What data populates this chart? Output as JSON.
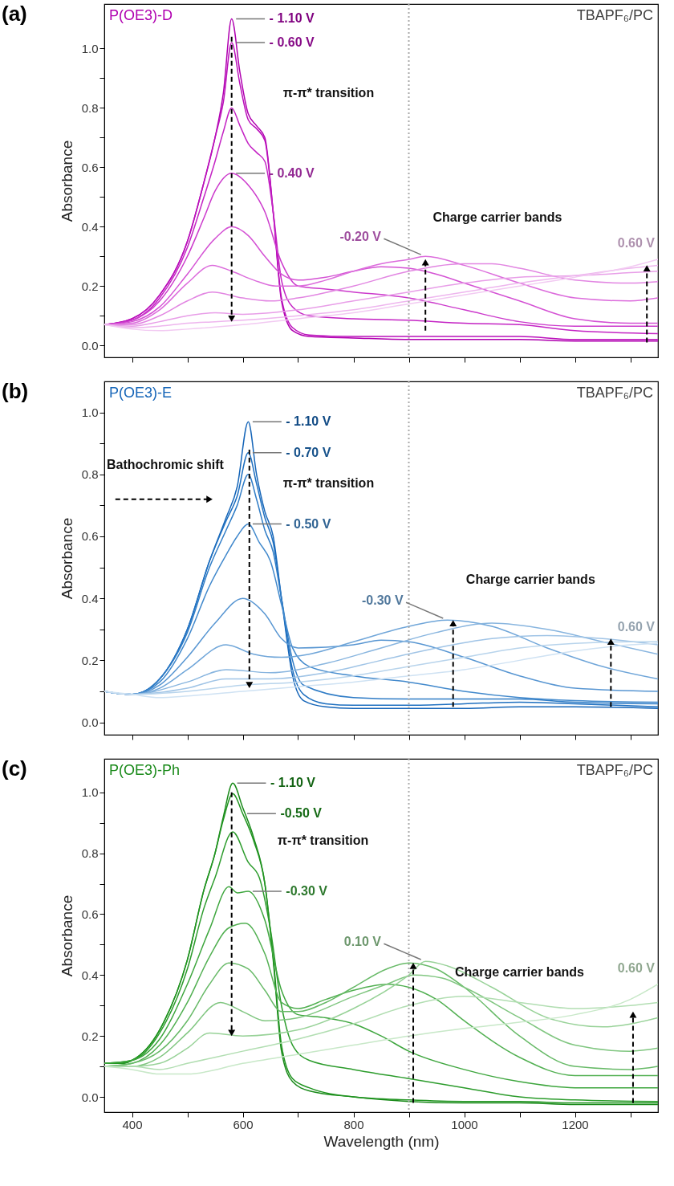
{
  "chart_data": [
    {
      "type": "line",
      "title": "P(OE3)-D",
      "subtitle": "TBAPF₆/PC",
      "ylabel": "Absorbance",
      "xlim": [
        350,
        1350
      ],
      "ylim": [
        -0.04,
        1.15
      ],
      "tick_labels": "y",
      "xticks": [
        400,
        {
          "value": 500,
          "label": null
        },
        600,
        {
          "value": 700,
          "label": null
        },
        800,
        {
          "value": 900,
          "label": null
        },
        1000,
        {
          "value": 1100,
          "label": null
        },
        1200,
        {
          "value": 1300,
          "label": null
        }
      ],
      "yticks": [
        {
          "value": 0,
          "label": "0.0"
        },
        {
          "value": 0.1,
          "label": null
        },
        {
          "value": 0.2,
          "label": "0.2"
        },
        {
          "value": 0.3,
          "label": null
        },
        {
          "value": 0.4,
          "label": "0.4"
        },
        {
          "value": 0.5,
          "label": null
        },
        {
          "value": 0.6,
          "label": "0.6"
        },
        {
          "value": 0.7,
          "label": null
        },
        {
          "value": 0.8,
          "label": "0.8"
        },
        {
          "value": 0.9,
          "label": null
        },
        {
          "value": 1,
          "label": "1.0"
        }
      ],
      "series": [
        {
          "color": "#b000b0",
          "x": [
            350,
            400,
            450,
            500,
            530,
            550,
            565,
            580,
            595,
            610,
            625,
            640,
            655,
            670,
            690,
            720,
            800,
            900,
            1000,
            1100,
            1200,
            1350
          ],
          "values": [
            0.07,
            0.09,
            0.17,
            0.35,
            0.55,
            0.7,
            0.85,
            1.1,
            0.92,
            0.78,
            0.74,
            0.7,
            0.45,
            0.15,
            0.05,
            0.03,
            0.025,
            0.02,
            0.02,
            0.02,
            0.015,
            0.015
          ]
        },
        {
          "color": "#bb10bb",
          "x": [
            350,
            400,
            450,
            500,
            530,
            550,
            565,
            580,
            595,
            610,
            625,
            640,
            655,
            670,
            690,
            720,
            800,
            900,
            1000,
            1100,
            1200,
            1350
          ],
          "values": [
            0.07,
            0.09,
            0.17,
            0.35,
            0.55,
            0.7,
            0.82,
            1.02,
            0.88,
            0.76,
            0.73,
            0.69,
            0.45,
            0.16,
            0.06,
            0.035,
            0.03,
            0.03,
            0.03,
            0.03,
            0.02,
            0.02
          ]
        },
        {
          "color": "#c424c4",
          "x": [
            350,
            400,
            450,
            500,
            530,
            550,
            565,
            580,
            595,
            610,
            625,
            640,
            655,
            670,
            690,
            720,
            800,
            900,
            1000,
            1100,
            1200,
            1350
          ],
          "values": [
            0.07,
            0.085,
            0.16,
            0.33,
            0.5,
            0.62,
            0.72,
            0.8,
            0.74,
            0.68,
            0.65,
            0.62,
            0.45,
            0.22,
            0.13,
            0.1,
            0.09,
            0.085,
            0.075,
            0.07,
            0.05,
            0.04
          ]
        },
        {
          "color": "#cc3acc",
          "x": [
            350,
            400,
            450,
            500,
            530,
            550,
            580,
            610,
            640,
            670,
            700,
            750,
            800,
            900,
            1000,
            1100,
            1200,
            1350
          ],
          "values": [
            0.07,
            0.085,
            0.15,
            0.3,
            0.43,
            0.52,
            0.58,
            0.54,
            0.45,
            0.28,
            0.2,
            0.19,
            0.18,
            0.16,
            0.12,
            0.08,
            0.065,
            0.065
          ]
        },
        {
          "color": "#d452d4",
          "x": [
            350,
            400,
            450,
            500,
            550,
            580,
            610,
            640,
            670,
            700,
            750,
            800,
            850,
            900,
            950,
            1000,
            1100,
            1200,
            1300,
            1350
          ],
          "values": [
            0.07,
            0.08,
            0.13,
            0.24,
            0.36,
            0.4,
            0.37,
            0.3,
            0.24,
            0.22,
            0.23,
            0.25,
            0.265,
            0.26,
            0.24,
            0.21,
            0.15,
            0.09,
            0.075,
            0.075
          ]
        },
        {
          "color": "#dc6cdc",
          "x": [
            350,
            400,
            450,
            500,
            545,
            580,
            620,
            660,
            700,
            750,
            800,
            850,
            900,
            930,
            1000,
            1100,
            1200,
            1300,
            1350
          ],
          "values": [
            0.07,
            0.075,
            0.12,
            0.21,
            0.27,
            0.25,
            0.22,
            0.2,
            0.2,
            0.22,
            0.25,
            0.275,
            0.29,
            0.3,
            0.27,
            0.21,
            0.16,
            0.15,
            0.16
          ]
        },
        {
          "color": "#e286e2",
          "x": [
            350,
            400,
            450,
            500,
            545,
            600,
            650,
            700,
            800,
            900,
            1000,
            1050,
            1100,
            1200,
            1300,
            1350
          ],
          "values": [
            0.07,
            0.07,
            0.1,
            0.15,
            0.18,
            0.16,
            0.15,
            0.16,
            0.2,
            0.25,
            0.275,
            0.275,
            0.26,
            0.22,
            0.21,
            0.215
          ]
        },
        {
          "color": "#e89ee8",
          "x": [
            350,
            400,
            450,
            500,
            550,
            600,
            700,
            800,
            900,
            1000,
            1100,
            1200,
            1300,
            1350
          ],
          "values": [
            0.07,
            0.065,
            0.08,
            0.1,
            0.11,
            0.105,
            0.12,
            0.15,
            0.18,
            0.21,
            0.23,
            0.235,
            0.245,
            0.25
          ]
        },
        {
          "color": "#eeb6ee",
          "x": [
            350,
            400,
            450,
            500,
            550,
            600,
            700,
            800,
            900,
            1000,
            1100,
            1200,
            1300,
            1350
          ],
          "values": [
            0.07,
            0.06,
            0.065,
            0.075,
            0.08,
            0.085,
            0.1,
            0.12,
            0.15,
            0.18,
            0.21,
            0.235,
            0.26,
            0.27
          ]
        },
        {
          "color": "#f2caf2",
          "x": [
            350,
            400,
            450,
            500,
            600,
            700,
            800,
            900,
            1000,
            1100,
            1200,
            1300,
            1350
          ],
          "values": [
            0.07,
            0.055,
            0.05,
            0.055,
            0.07,
            0.09,
            0.11,
            0.14,
            0.17,
            0.2,
            0.23,
            0.265,
            0.29
          ]
        }
      ],
      "annotations": [
        "(a)",
        {
          "text": "- 1.10 V",
          "x": 580,
          "y": 1.1
        },
        {
          "text": "- 0.60 V",
          "x": 580,
          "y": 1.02
        },
        {
          "text": "- 0.40 V",
          "x": 580,
          "y": 0.58
        },
        "π-π* transition",
        {
          "text": "-0.20 V",
          "x": 930,
          "y": 0.3
        },
        "Charge carrier bands",
        {
          "text": "0.60 V",
          "x": 1350,
          "y": 0.29
        }
      ],
      "ref_lines": [
        {
          "axis": "x",
          "value": 900,
          "color": "#aaaaaa",
          "line_style": "dotted"
        }
      ]
    },
    {
      "type": "line",
      "title": "P(OE3)-E",
      "subtitle": "TBAPF₆/PC",
      "ylabel": "Absorbance",
      "xlim": [
        350,
        1350
      ],
      "ylim": [
        -0.04,
        1.1
      ],
      "tick_labels": "y",
      "xticks": [
        400,
        {
          "value": 500,
          "label": null
        },
        600,
        {
          "value": 700,
          "label": null
        },
        800,
        {
          "value": 900,
          "label": null
        },
        1000,
        {
          "value": 1100,
          "label": null
        },
        1200,
        {
          "value": 1300,
          "label": null
        }
      ],
      "yticks": [
        {
          "value": 0,
          "label": "0.0"
        },
        {
          "value": 0.1,
          "label": null
        },
        {
          "value": 0.2,
          "label": "0.2"
        },
        {
          "value": 0.3,
          "label": null
        },
        {
          "value": 0.4,
          "label": "0.4"
        },
        {
          "value": 0.5,
          "label": null
        },
        {
          "value": 0.6,
          "label": "0.6"
        },
        {
          "value": 0.7,
          "label": null
        },
        {
          "value": 0.8,
          "label": "0.8"
        },
        {
          "value": 0.9,
          "label": null
        },
        {
          "value": 1,
          "label": "1.0"
        }
      ],
      "series": [
        {
          "color": "#1565b8",
          "x": [
            350,
            400,
            450,
            500,
            540,
            570,
            590,
            610,
            625,
            640,
            655,
            670,
            690,
            710,
            750,
            800,
            900,
            1000,
            1100,
            1200,
            1350
          ],
          "values": [
            0.1,
            0.09,
            0.14,
            0.3,
            0.52,
            0.66,
            0.76,
            0.97,
            0.8,
            0.68,
            0.6,
            0.4,
            0.15,
            0.07,
            0.05,
            0.045,
            0.045,
            0.045,
            0.05,
            0.05,
            0.045
          ]
        },
        {
          "color": "#1f70c0",
          "x": [
            350,
            400,
            450,
            500,
            540,
            570,
            590,
            610,
            625,
            640,
            655,
            670,
            690,
            710,
            750,
            800,
            900,
            1000,
            1100,
            1200,
            1350
          ],
          "values": [
            0.1,
            0.09,
            0.14,
            0.3,
            0.52,
            0.65,
            0.73,
            0.87,
            0.77,
            0.66,
            0.58,
            0.4,
            0.17,
            0.09,
            0.06,
            0.055,
            0.055,
            0.06,
            0.065,
            0.06,
            0.05
          ]
        },
        {
          "color": "#2f7cc6",
          "x": [
            350,
            400,
            450,
            500,
            540,
            570,
            590,
            610,
            625,
            640,
            655,
            670,
            690,
            710,
            800,
            900,
            1000,
            1100,
            1200,
            1350
          ],
          "values": [
            0.1,
            0.09,
            0.14,
            0.29,
            0.5,
            0.62,
            0.7,
            0.8,
            0.72,
            0.62,
            0.55,
            0.4,
            0.2,
            0.12,
            0.08,
            0.075,
            0.075,
            0.075,
            0.065,
            0.06
          ]
        },
        {
          "color": "#4289cc",
          "x": [
            350,
            400,
            450,
            500,
            540,
            570,
            590,
            610,
            630,
            650,
            670,
            690,
            720,
            800,
            900,
            1000,
            1100,
            1200,
            1350
          ],
          "values": [
            0.1,
            0.09,
            0.13,
            0.27,
            0.44,
            0.54,
            0.6,
            0.64,
            0.58,
            0.52,
            0.38,
            0.24,
            0.18,
            0.15,
            0.13,
            0.1,
            0.08,
            0.07,
            0.065
          ]
        },
        {
          "color": "#5896d2",
          "x": [
            350,
            400,
            450,
            500,
            550,
            600,
            640,
            670,
            700,
            800,
            850,
            900,
            1000,
            1100,
            1200,
            1350
          ],
          "values": [
            0.1,
            0.09,
            0.12,
            0.21,
            0.32,
            0.4,
            0.35,
            0.27,
            0.24,
            0.25,
            0.265,
            0.26,
            0.21,
            0.15,
            0.11,
            0.1
          ]
        },
        {
          "color": "#70a6d9",
          "x": [
            350,
            400,
            450,
            500,
            570,
            620,
            670,
            720,
            800,
            900,
            970,
            1050,
            1150,
            1250,
            1350
          ],
          "values": [
            0.1,
            0.09,
            0.11,
            0.17,
            0.25,
            0.22,
            0.21,
            0.22,
            0.26,
            0.31,
            0.33,
            0.31,
            0.24,
            0.18,
            0.14
          ]
        },
        {
          "color": "#88b5df",
          "x": [
            350,
            400,
            500,
            570,
            650,
            750,
            850,
            950,
            1050,
            1150,
            1250,
            1350
          ],
          "values": [
            0.1,
            0.09,
            0.13,
            0.17,
            0.16,
            0.19,
            0.24,
            0.29,
            0.32,
            0.3,
            0.26,
            0.22
          ]
        },
        {
          "color": "#a0c4e6",
          "x": [
            350,
            400,
            500,
            570,
            650,
            750,
            850,
            950,
            1050,
            1150,
            1250,
            1350
          ],
          "values": [
            0.1,
            0.09,
            0.11,
            0.14,
            0.14,
            0.16,
            0.2,
            0.24,
            0.27,
            0.28,
            0.27,
            0.25
          ]
        },
        {
          "color": "#b8d4ec",
          "x": [
            350,
            400,
            500,
            600,
            700,
            800,
            900,
            1000,
            1100,
            1200,
            1300,
            1350
          ],
          "values": [
            0.1,
            0.09,
            0.1,
            0.12,
            0.13,
            0.15,
            0.18,
            0.21,
            0.24,
            0.255,
            0.26,
            0.26
          ]
        },
        {
          "color": "#cfe2f3",
          "x": [
            350,
            400,
            450,
            500,
            600,
            700,
            800,
            900,
            1000,
            1100,
            1200,
            1300,
            1350
          ],
          "values": [
            0.1,
            0.09,
            0.08,
            0.085,
            0.1,
            0.115,
            0.13,
            0.15,
            0.17,
            0.2,
            0.23,
            0.25,
            0.255
          ]
        }
      ],
      "annotations": [
        "(b)",
        {
          "text": "- 1.10 V",
          "x": 610,
          "y": 0.97
        },
        {
          "text": "- 0.70 V",
          "x": 610,
          "y": 0.87
        },
        {
          "text": "- 0.50 V",
          "x": 610,
          "y": 0.64
        },
        "Bathochromic shift",
        "π-π* transition",
        {
          "text": "-0.30 V",
          "x": 970,
          "y": 0.33
        },
        "Charge carrier bands",
        {
          "text": "0.60 V",
          "x": 1350,
          "y": 0.255
        }
      ],
      "ref_lines": [
        {
          "axis": "x",
          "value": 900,
          "color": "#aaaaaa",
          "line_style": "dotted"
        }
      ]
    },
    {
      "type": "line",
      "title": "P(OE3)-Ph",
      "subtitle": "TBAPF₆/PC",
      "xlabel": "Wavelength (nm)",
      "ylabel": "Absorbance",
      "xlim": [
        350,
        1350
      ],
      "ylim": [
        -0.05,
        1.11
      ],
      "xticks": [
        400,
        {
          "value": 500,
          "label": null
        },
        600,
        {
          "value": 700,
          "label": null
        },
        800,
        {
          "value": 900,
          "label": null
        },
        1000,
        {
          "value": 1100,
          "label": null
        },
        1200,
        {
          "value": 1300,
          "label": null
        }
      ],
      "yticks": [
        {
          "value": 0,
          "label": "0.0"
        },
        {
          "value": 0.1,
          "label": null
        },
        {
          "value": 0.2,
          "label": "0.2"
        },
        {
          "value": 0.3,
          "label": null
        },
        {
          "value": 0.4,
          "label": "0.4"
        },
        {
          "value": 0.5,
          "label": null
        },
        {
          "value": 0.6,
          "label": "0.6"
        },
        {
          "value": 0.7,
          "label": null
        },
        {
          "value": 0.8,
          "label": "0.8"
        },
        {
          "value": 0.9,
          "label": null
        },
        {
          "value": 1,
          "label": "1.0"
        }
      ],
      "series": [
        {
          "color": "#1a8a1a",
          "x": [
            350,
            380,
            400,
            450,
            500,
            530,
            550,
            565,
            582,
            600,
            620,
            640,
            655,
            670,
            690,
            720,
            800,
            900,
            1000,
            1100,
            1200,
            1350
          ],
          "values": [
            0.11,
            0.11,
            0.12,
            0.22,
            0.45,
            0.68,
            0.8,
            0.92,
            1.03,
            0.95,
            0.85,
            0.7,
            0.45,
            0.15,
            0.05,
            0.02,
            0,
            -0.015,
            -0.02,
            -0.02,
            -0.025,
            -0.025
          ]
        },
        {
          "color": "#209420",
          "x": [
            350,
            380,
            400,
            450,
            500,
            530,
            550,
            565,
            582,
            600,
            620,
            640,
            655,
            670,
            690,
            720,
            800,
            900,
            1000,
            1100,
            1200,
            1350
          ],
          "values": [
            0.11,
            0.11,
            0.12,
            0.22,
            0.45,
            0.68,
            0.8,
            0.91,
            0.995,
            0.93,
            0.84,
            0.7,
            0.46,
            0.17,
            0.06,
            0.03,
            0,
            -0.01,
            -0.015,
            -0.015,
            -0.02,
            -0.02
          ]
        },
        {
          "color": "#2c9c2c",
          "x": [
            350,
            400,
            450,
            500,
            530,
            550,
            582,
            610,
            630,
            650,
            670,
            690,
            720,
            800,
            900,
            1000,
            1100,
            1200,
            1350
          ],
          "values": [
            0.11,
            0.12,
            0.21,
            0.42,
            0.62,
            0.72,
            0.87,
            0.77,
            0.72,
            0.55,
            0.3,
            0.17,
            0.12,
            0.09,
            0.06,
            0.03,
            0,
            -0.01,
            -0.015
          ]
        },
        {
          "color": "#3ea63e",
          "x": [
            350,
            400,
            450,
            500,
            540,
            575,
            590,
            610,
            640,
            670,
            700,
            750,
            800,
            850,
            900,
            1000,
            1100,
            1200,
            1350
          ],
          "values": [
            0.11,
            0.12,
            0.19,
            0.37,
            0.55,
            0.69,
            0.67,
            0.675,
            0.58,
            0.35,
            0.27,
            0.26,
            0.24,
            0.2,
            0.15,
            0.09,
            0.05,
            0.03,
            0.03
          ]
        },
        {
          "color": "#52b052",
          "x": [
            350,
            400,
            450,
            500,
            540,
            575,
            605,
            640,
            670,
            700,
            750,
            800,
            860,
            900,
            950,
            1000,
            1100,
            1200,
            1350
          ],
          "values": [
            0.1,
            0.11,
            0.17,
            0.31,
            0.46,
            0.555,
            0.57,
            0.47,
            0.31,
            0.29,
            0.32,
            0.35,
            0.37,
            0.36,
            0.32,
            0.25,
            0.13,
            0.07,
            0.07
          ]
        },
        {
          "color": "#68ba68",
          "x": [
            350,
            400,
            450,
            500,
            540,
            575,
            610,
            640,
            670,
            700,
            750,
            800,
            860,
            900,
            950,
            1000,
            1100,
            1200,
            1300,
            1350
          ],
          "values": [
            0.1,
            0.11,
            0.15,
            0.25,
            0.37,
            0.44,
            0.42,
            0.35,
            0.28,
            0.28,
            0.31,
            0.36,
            0.42,
            0.44,
            0.42,
            0.36,
            0.2,
            0.1,
            0.09,
            0.1
          ]
        },
        {
          "color": "#80c680",
          "x": [
            350,
            400,
            450,
            500,
            560,
            600,
            640,
            700,
            800,
            860,
            910,
            960,
            1000,
            1100,
            1200,
            1300,
            1350
          ],
          "values": [
            0.1,
            0.1,
            0.13,
            0.21,
            0.31,
            0.28,
            0.25,
            0.26,
            0.33,
            0.37,
            0.4,
            0.39,
            0.36,
            0.26,
            0.17,
            0.15,
            0.16
          ]
        },
        {
          "color": "#98d298",
          "x": [
            350,
            400,
            450,
            500,
            540,
            600,
            700,
            800,
            900,
            930,
            970,
            1050,
            1150,
            1250,
            1350
          ],
          "values": [
            0.1,
            0.1,
            0.11,
            0.16,
            0.21,
            0.2,
            0.22,
            0.29,
            0.4,
            0.445,
            0.43,
            0.36,
            0.26,
            0.23,
            0.26
          ]
        },
        {
          "color": "#b2deb2",
          "x": [
            350,
            400,
            450,
            500,
            600,
            700,
            800,
            900,
            1000,
            1100,
            1200,
            1300,
            1350
          ],
          "values": [
            0.1,
            0.1,
            0.09,
            0.11,
            0.15,
            0.19,
            0.24,
            0.3,
            0.33,
            0.31,
            0.29,
            0.3,
            0.31
          ]
        },
        {
          "color": "#c8e8c8",
          "x": [
            350,
            400,
            450,
            500,
            600,
            700,
            800,
            900,
            1000,
            1100,
            1200,
            1300,
            1350
          ],
          "values": [
            0.1,
            0.09,
            0.075,
            0.075,
            0.11,
            0.14,
            0.17,
            0.2,
            0.225,
            0.245,
            0.27,
            0.32,
            0.37
          ]
        }
      ],
      "annotations": [
        "(c)",
        {
          "text": "- 1.10 V",
          "x": 582,
          "y": 1.03
        },
        {
          "text": "-0.50 V",
          "x": 600,
          "y": 0.93
        },
        "π-π* transition",
        {
          "text": "-0.30 V",
          "x": 610,
          "y": 0.675
        },
        {
          "text": "0.10 V",
          "x": 930,
          "y": 0.445
        },
        "Charge carrier bands",
        {
          "text": "0.60 V",
          "x": 1350,
          "y": 0.37
        }
      ],
      "ref_lines": [
        {
          "axis": "x",
          "value": 900,
          "color": "#aaaaaa",
          "line_style": "dotted"
        }
      ]
    }
  ]
}
